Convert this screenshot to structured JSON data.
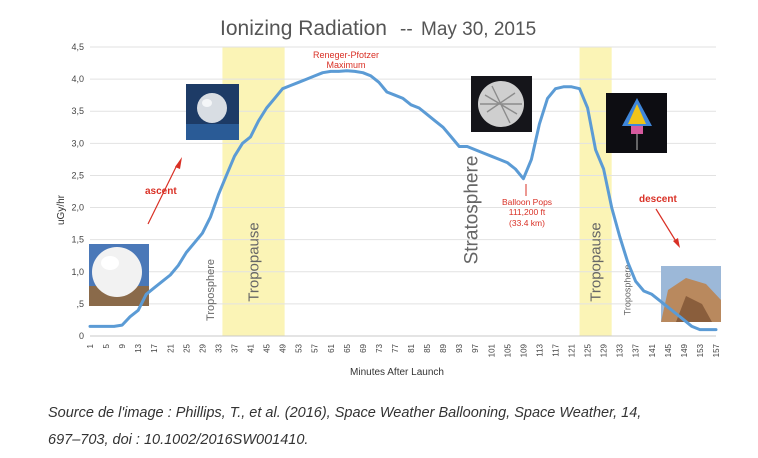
{
  "chart_data": {
    "type": "line",
    "title": "Ionizing Radiation",
    "title_sep": "--",
    "title_date": "May 30, 2015",
    "xlabel": "Minutes After Launch",
    "ylabel": "uGy/hr",
    "ylim": [
      0,
      4.5
    ],
    "y_ticks": [
      "0",
      ",5",
      "1,0",
      "1,5",
      "2,0",
      "2,5",
      "3,0",
      "3,5",
      "4,0",
      "4,5"
    ],
    "x_ticks": [
      "1",
      "5",
      "9",
      "13",
      "17",
      "21",
      "25",
      "29",
      "33",
      "37",
      "41",
      "45",
      "49",
      "53",
      "57",
      "61",
      "65",
      "69",
      "73",
      "77",
      "81",
      "85",
      "89",
      "93",
      "97",
      "101",
      "105",
      "109",
      "113",
      "117",
      "121",
      "125",
      "129",
      "133",
      "137",
      "141",
      "145",
      "149",
      "153",
      "157"
    ],
    "grid": true,
    "legend": "none",
    "series": [
      {
        "color": "#5b9bd5",
        "x": [
          1,
          3,
          5,
          7,
          9,
          11,
          13,
          15,
          17,
          19,
          21,
          23,
          25,
          27,
          29,
          31,
          33,
          35,
          37,
          39,
          41,
          43,
          45,
          47,
          49,
          51,
          53,
          55,
          57,
          59,
          61,
          63,
          65,
          67,
          69,
          71,
          73,
          75,
          77,
          79,
          81,
          83,
          85,
          87,
          89,
          91,
          93,
          95,
          97,
          99,
          101,
          103,
          105,
          107,
          109,
          111,
          113,
          115,
          117,
          119,
          121,
          123,
          125,
          127,
          129,
          131,
          133,
          135,
          137,
          139,
          141,
          143,
          145,
          147,
          149,
          151,
          153,
          155,
          157
        ],
        "y": [
          0.15,
          0.15,
          0.15,
          0.15,
          0.17,
          0.3,
          0.4,
          0.65,
          0.75,
          0.85,
          0.95,
          1.1,
          1.3,
          1.45,
          1.6,
          1.85,
          2.2,
          2.5,
          2.8,
          3.0,
          3.1,
          3.35,
          3.55,
          3.7,
          3.85,
          3.9,
          3.95,
          4.0,
          4.05,
          4.1,
          4.12,
          4.12,
          4.13,
          4.12,
          4.1,
          4.05,
          3.95,
          3.8,
          3.75,
          3.7,
          3.6,
          3.55,
          3.45,
          3.35,
          3.25,
          3.1,
          2.95,
          2.95,
          2.9,
          2.85,
          2.8,
          2.75,
          2.7,
          2.6,
          2.45,
          2.75,
          3.3,
          3.7,
          3.85,
          3.88,
          3.88,
          3.85,
          3.55,
          2.9,
          2.6,
          2.0,
          1.55,
          1.15,
          0.85,
          0.7,
          0.65,
          0.55,
          0.45,
          0.35,
          0.25,
          0.15,
          0.1,
          0.1,
          0.1
        ]
      }
    ],
    "zones": [
      {
        "label": "Troposphere",
        "x_from": 29,
        "x_to": 33,
        "shaded": false,
        "size": 11
      },
      {
        "label": "Tropopause",
        "x_from": 34,
        "x_to": 49.5,
        "shaded": true,
        "size": 15
      },
      {
        "label": "Stratosphere",
        "x_from": 95,
        "x_to": 97,
        "shaded": false,
        "size": 19
      },
      {
        "label": "Tropopause",
        "x_from": 123,
        "x_to": 131,
        "shaded": true,
        "size": 15
      },
      {
        "label": "Troposphere",
        "x_from": 134,
        "x_to": 136,
        "shaded": false,
        "size": 9
      }
    ],
    "annotations": {
      "rp_line1": "Reneger-Pfotzer",
      "rp_line2": "Maximum",
      "pop_line1": "Balloon Pops",
      "pop_line2": "111,200 ft",
      "pop_line3": "(33.4 km)",
      "ascent": "ascent",
      "descent": "descent",
      "accent_color": "#d93025"
    }
  },
  "caption": {
    "line1": "Source de l'image : Phillips, T., et al. (2016), Space Weather Ballooning, Space Weather, 14,",
    "line2": "697–703, doi : 10.1002/2016SW001410."
  }
}
